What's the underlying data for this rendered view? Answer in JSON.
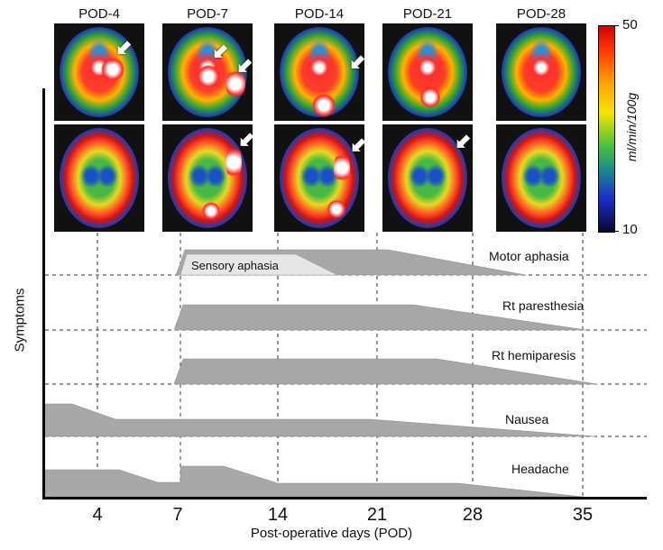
{
  "scans": [
    {
      "label": "POD-4"
    },
    {
      "label": "POD-7"
    },
    {
      "label": "POD-14"
    },
    {
      "label": "POD-21"
    },
    {
      "label": "POD-28"
    }
  ],
  "colorbar": {
    "max": "50",
    "min": "10",
    "unit": "ml/min/100g"
  },
  "symptoms_axis_label": "Symptoms",
  "x_axis": {
    "label": "Post-operative days (POD)",
    "ticks": [
      "4",
      "7",
      "14",
      "21",
      "28",
      "35"
    ]
  },
  "symptoms": [
    {
      "name": "Motor aphasia"
    },
    {
      "name": "Sensory aphasia"
    },
    {
      "name": "Rt paresthesia"
    },
    {
      "name": "Rt hemiparesis"
    },
    {
      "name": "Nausea"
    },
    {
      "name": "Headache"
    }
  ],
  "colors": {
    "bar_fill": "#a7a7a7",
    "sensory_fill": "#e6e6e6",
    "axis": "#000000"
  }
}
